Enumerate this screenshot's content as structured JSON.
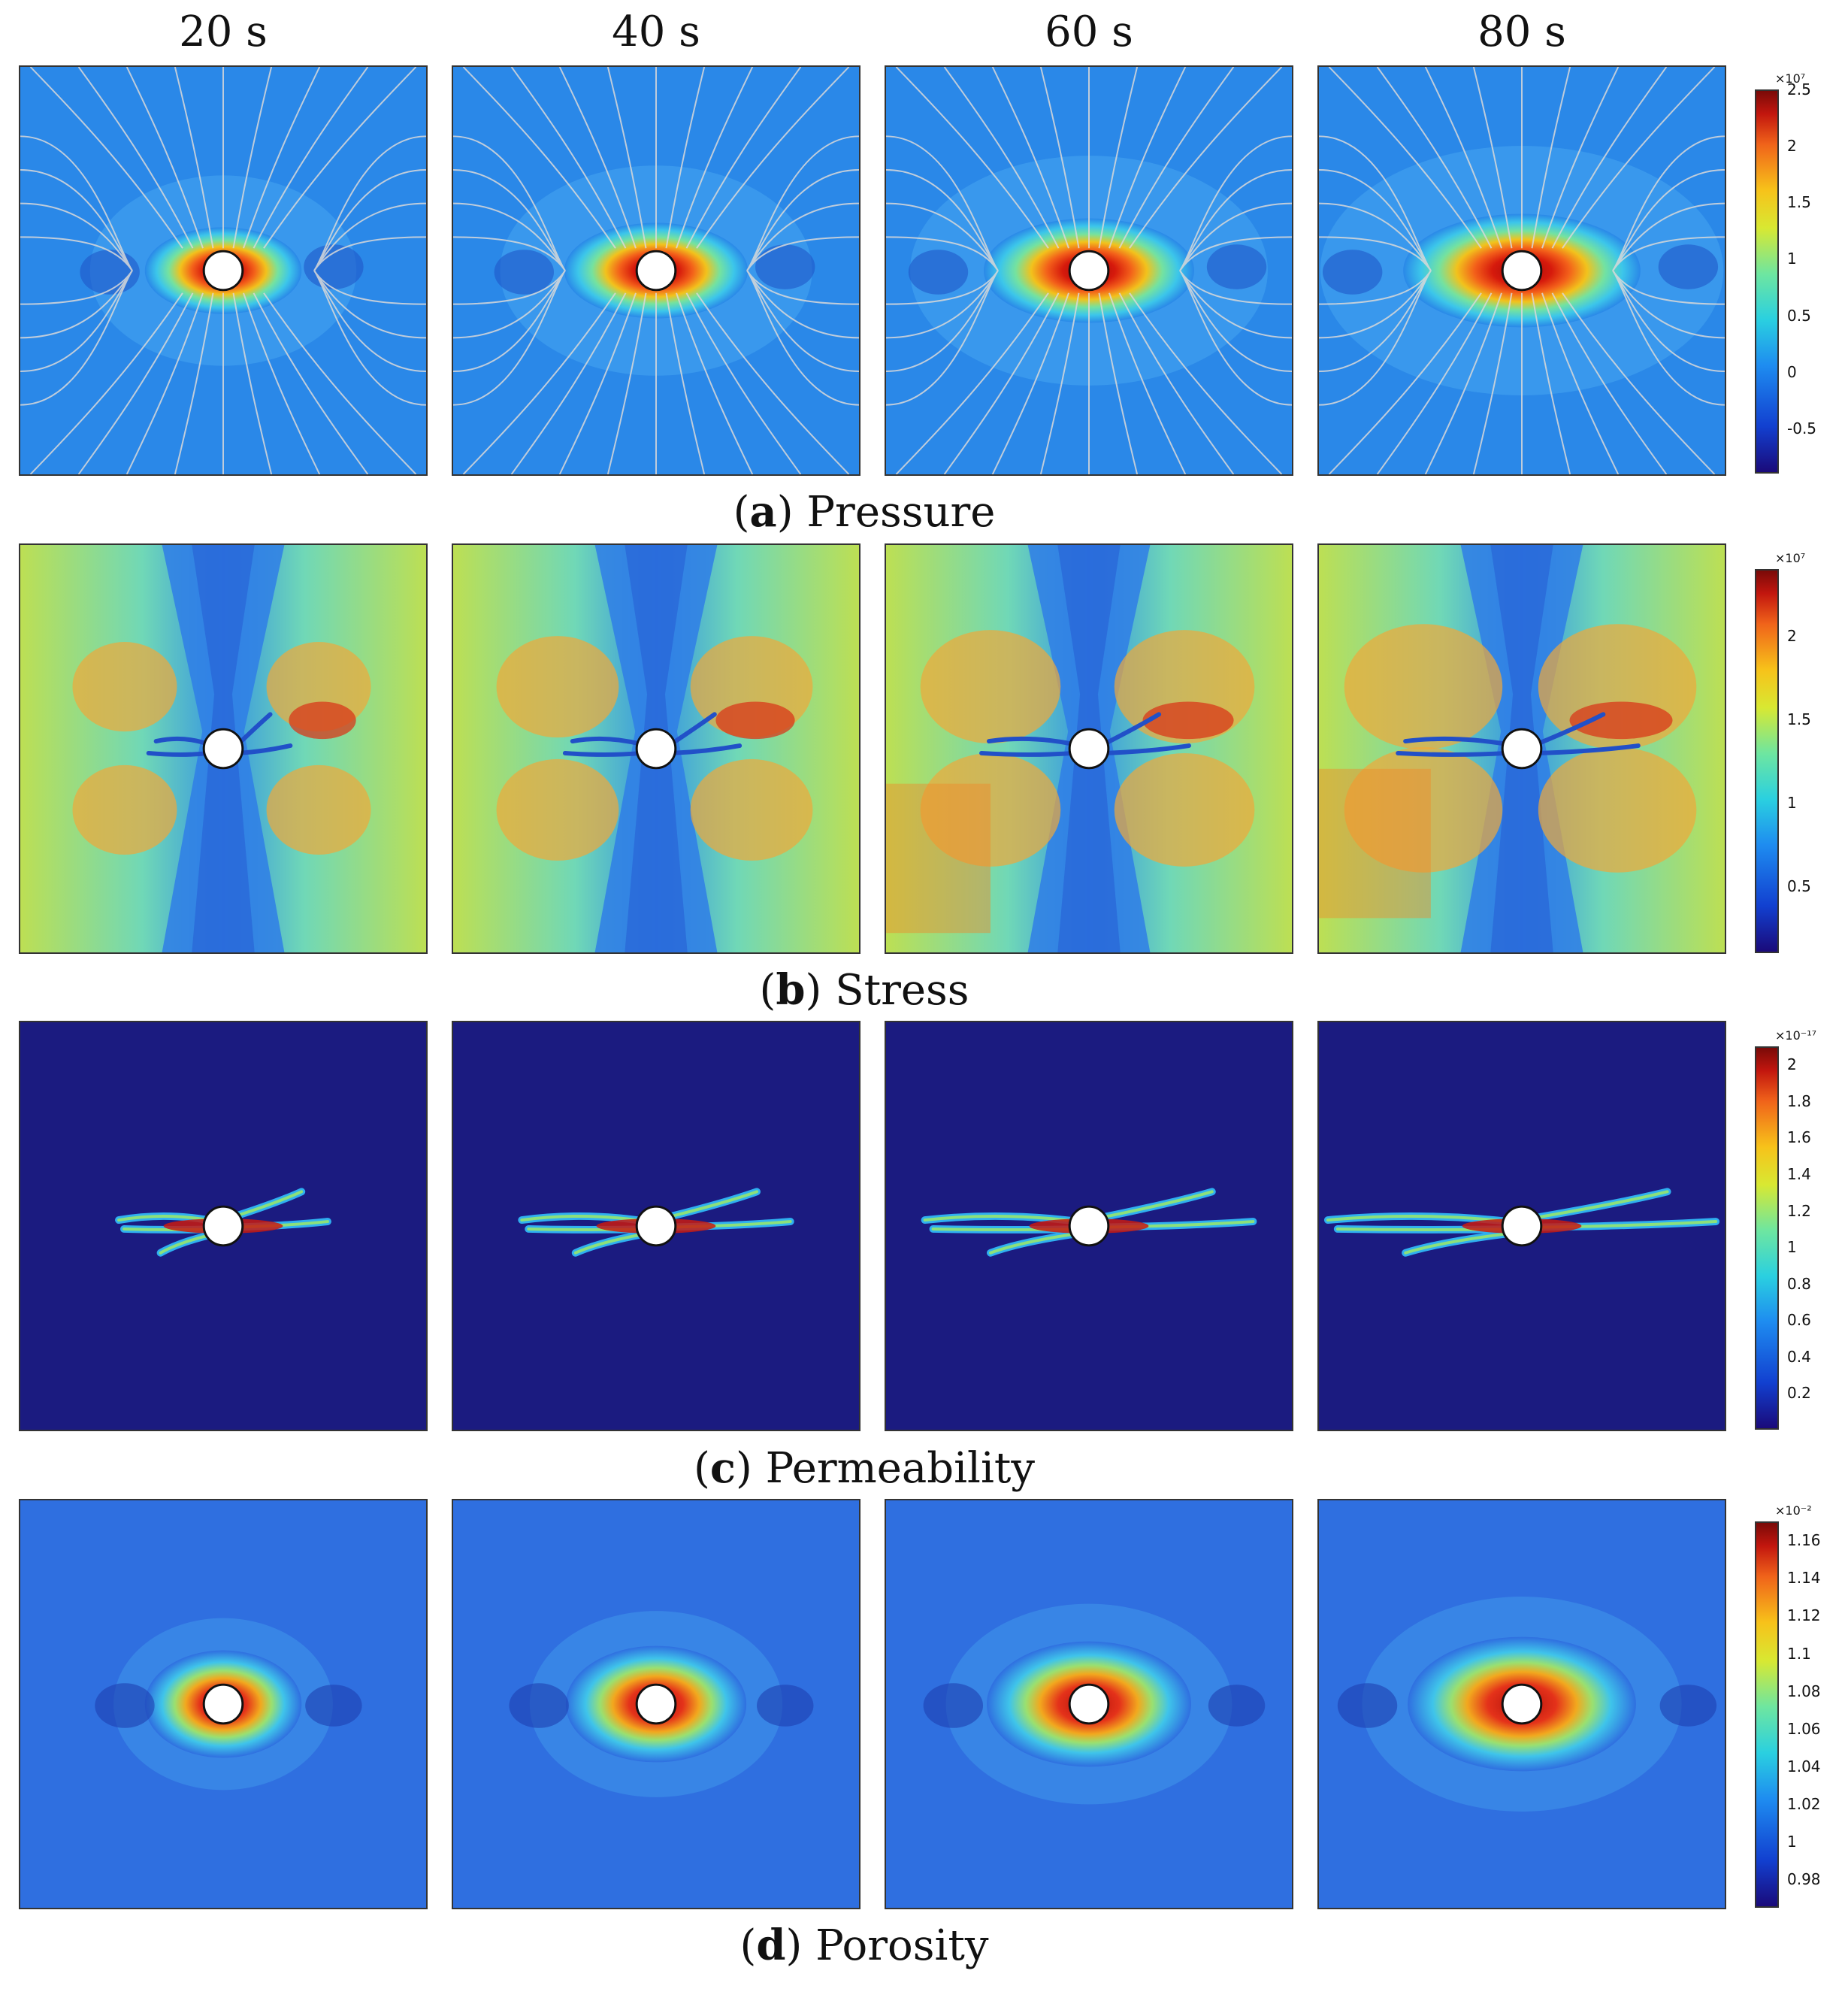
{
  "columns": [
    "20 s",
    "40 s",
    "60 s",
    "80 s"
  ],
  "rows": [
    {
      "letter": "a",
      "label": "Pressure",
      "exponent": "×10⁷",
      "ticks": [
        "2.5",
        "2",
        "1.5",
        "1",
        "0.5",
        "0",
        "-0.5"
      ],
      "tick_values": [
        2.5,
        2,
        1.5,
        1,
        0.5,
        0,
        -0.5
      ],
      "range": [
        -0.9,
        2.5
      ]
    },
    {
      "letter": "b",
      "label": "Stress",
      "exponent": "×10⁷",
      "ticks": [
        "2",
        "1.5",
        "1",
        "0.5"
      ],
      "tick_values": [
        2,
        1.5,
        1,
        0.5
      ],
      "range": [
        0.1,
        2.4
      ]
    },
    {
      "letter": "c",
      "label": "Permeability",
      "exponent": "×10⁻¹⁷",
      "ticks": [
        "2",
        "1.8",
        "1.6",
        "1.4",
        "1.2",
        "1",
        "0.8",
        "0.6",
        "0.4",
        "0.2"
      ],
      "tick_values": [
        2,
        1.8,
        1.6,
        1.4,
        1.2,
        1,
        0.8,
        0.6,
        0.4,
        0.2
      ],
      "range": [
        0.0,
        2.1
      ]
    },
    {
      "letter": "d",
      "label": "Porosity",
      "exponent": "×10⁻²",
      "ticks": [
        "1.16",
        "1.14",
        "1.12",
        "1.1",
        "1.08",
        "1.06",
        "1.04",
        "1.02",
        "1",
        "0.98"
      ],
      "tick_values": [
        1.16,
        1.14,
        1.12,
        1.1,
        1.08,
        1.06,
        1.04,
        1.02,
        1.0,
        0.98
      ],
      "range": [
        0.965,
        1.17
      ]
    }
  ]
}
